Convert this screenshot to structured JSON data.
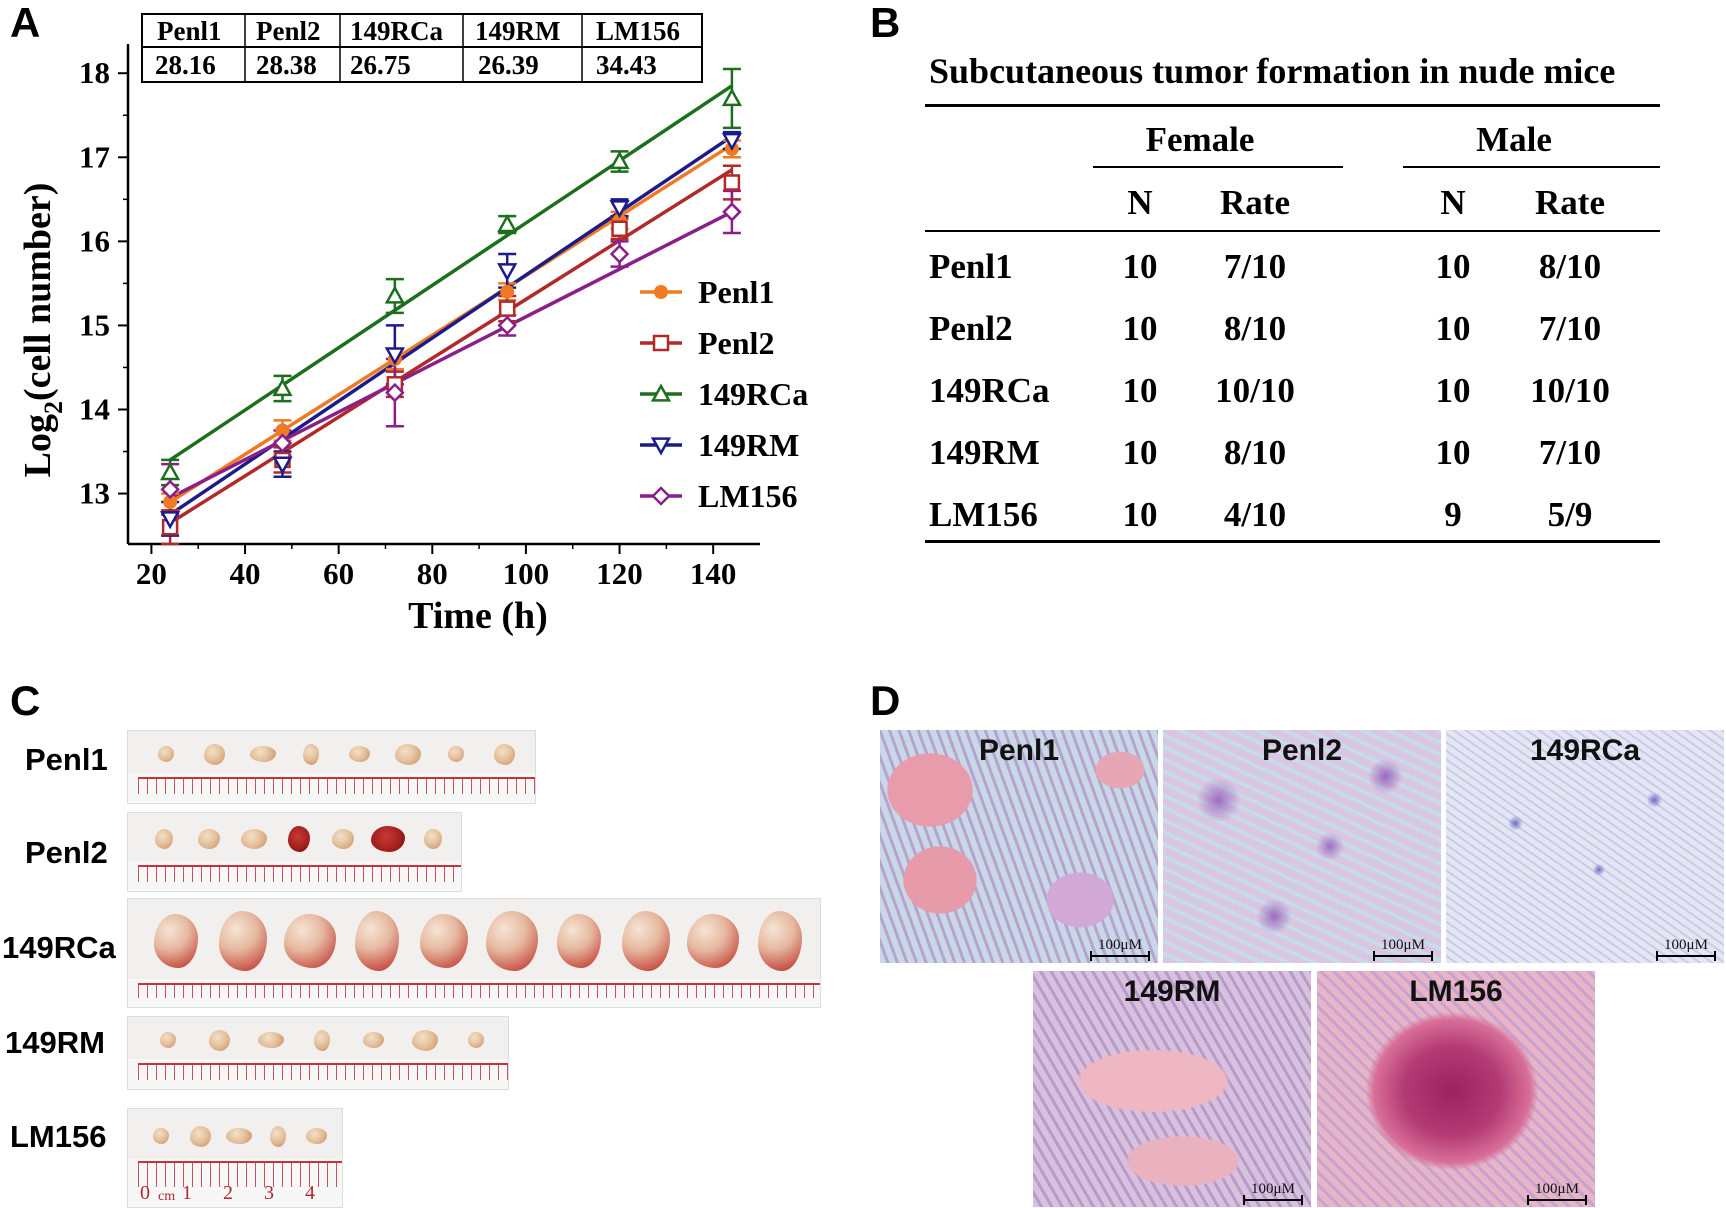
{
  "panels": {
    "a": "A",
    "b": "B",
    "c": "C",
    "d": "D"
  },
  "doubling_table": {
    "headers": [
      "Penl1",
      "Penl2",
      "149RCa",
      "149RM",
      "LM156"
    ],
    "values": [
      "28.16",
      "28.38",
      "26.75",
      "26.39",
      "34.43"
    ]
  },
  "chart_data": {
    "type": "line",
    "title": "",
    "xlabel": "Time (h)",
    "ylabel_main": "Log",
    "ylabel_sub": "2",
    "ylabel_rest": "(cell number)",
    "xlim": [
      15,
      150
    ],
    "ylim": [
      12.4,
      18.3
    ],
    "xticks": [
      20,
      40,
      60,
      80,
      100,
      120,
      140
    ],
    "yticks": [
      13,
      14,
      15,
      16,
      17,
      18
    ],
    "x": [
      24,
      48,
      72,
      96,
      120,
      144
    ],
    "series": [
      {
        "name": "Penl1",
        "color": "#f07a21",
        "marker": "circle",
        "values": [
          12.9,
          13.75,
          14.6,
          15.4,
          16.25,
          17.1
        ],
        "err": [
          0.1,
          0.12,
          0.12,
          0.1,
          0.1,
          0.1
        ],
        "fit": [
          12.9,
          17.15
        ]
      },
      {
        "name": "Penl2",
        "color": "#b12a2a",
        "marker": "square",
        "values": [
          12.6,
          13.4,
          14.3,
          15.2,
          16.15,
          16.7
        ],
        "err": [
          0.2,
          0.15,
          0.15,
          0.15,
          0.12,
          0.2
        ],
        "fit": [
          12.65,
          16.85
        ]
      },
      {
        "name": "149RCa",
        "color": "#1d6e1d",
        "marker": "triangle-up",
        "values": [
          13.25,
          14.25,
          15.35,
          16.2,
          16.95,
          17.7
        ],
        "err": [
          0.15,
          0.15,
          0.2,
          0.1,
          0.12,
          0.35
        ],
        "fit": [
          13.4,
          17.85
        ]
      },
      {
        "name": "149RM",
        "color": "#1b1c8a",
        "marker": "triangle-down",
        "values": [
          12.7,
          13.35,
          14.65,
          15.65,
          16.4,
          17.2
        ],
        "err": [
          0.2,
          0.15,
          0.35,
          0.2,
          0.1,
          0.1
        ],
        "fit": [
          12.75,
          17.25
        ]
      },
      {
        "name": "LM156",
        "color": "#8a1f8a",
        "marker": "diamond",
        "values": [
          13.05,
          13.6,
          14.2,
          15.0,
          15.85,
          16.35
        ],
        "err": [
          0.3,
          0.15,
          0.4,
          0.12,
          0.15,
          0.25
        ],
        "fit": [
          12.95,
          16.35
        ]
      }
    ],
    "legend_position": "right"
  },
  "table_b": {
    "title": "Subcutaneous tumor formation in nude mice",
    "groups": [
      "Female",
      "Male"
    ],
    "subheaders": [
      "N",
      "Rate",
      "N",
      "Rate"
    ],
    "rows": [
      {
        "name": "Penl1",
        "f_n": "10",
        "f_rate": "7/10",
        "m_n": "10",
        "m_rate": "8/10"
      },
      {
        "name": "Penl2",
        "f_n": "10",
        "f_rate": "8/10",
        "m_n": "10",
        "m_rate": "7/10"
      },
      {
        "name": "149RCa",
        "f_n": "10",
        "f_rate": "10/10",
        "m_n": "10",
        "m_rate": "10/10"
      },
      {
        "name": "149RM",
        "f_n": "10",
        "f_rate": "8/10",
        "m_n": "10",
        "m_rate": "7/10"
      },
      {
        "name": "LM156",
        "f_n": "10",
        "f_rate": "4/10",
        "m_n": "9",
        "m_rate": "5/9"
      }
    ]
  },
  "tumor_photos": {
    "labels": [
      "Penl1",
      "Penl2",
      "149RCa",
      "149RM",
      "LM156"
    ],
    "counts": [
      8,
      7,
      10,
      7,
      5
    ],
    "ruler_numbers": [
      "0",
      "cm",
      "1",
      "2",
      "3",
      "4"
    ]
  },
  "histology": {
    "labels": [
      "Penl1",
      "Penl2",
      "149RCa",
      "149RM",
      "LM156"
    ],
    "scale_label": "100μM"
  }
}
